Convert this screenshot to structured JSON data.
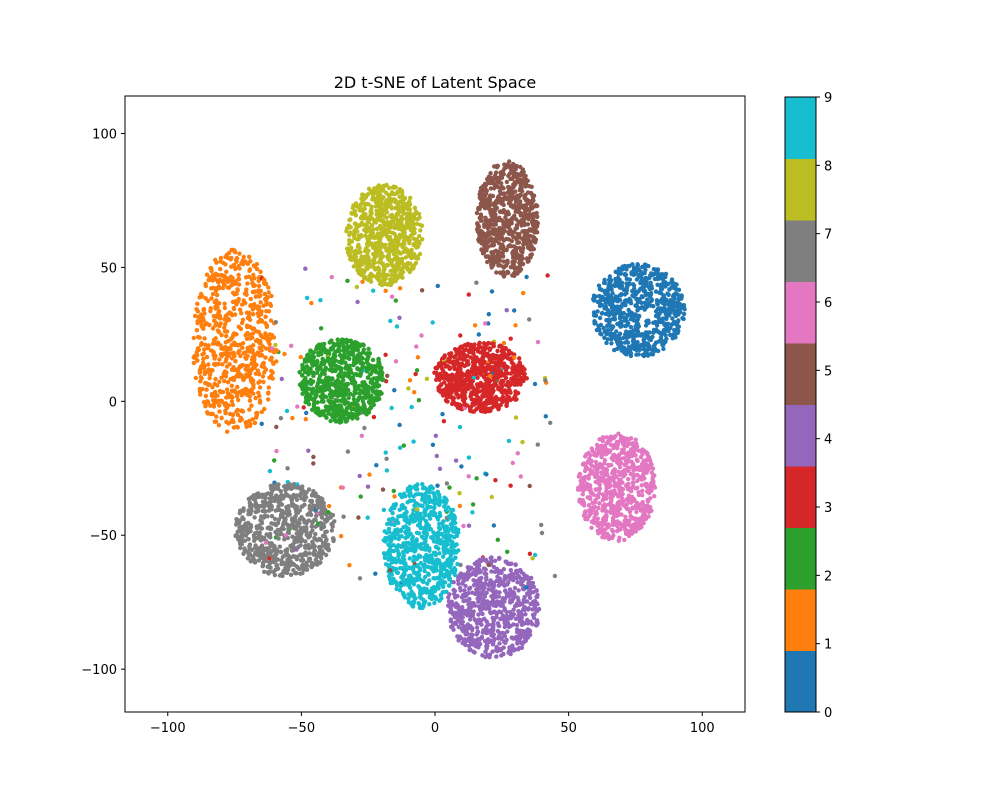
{
  "chart_data": {
    "type": "scatter",
    "title": "2D t-SNE of Latent Space",
    "xlabel": "",
    "ylabel": "",
    "xlim": [
      -116,
      116
    ],
    "ylim": [
      -116,
      114
    ],
    "xticks": [
      -100,
      -50,
      0,
      50,
      100
    ],
    "yticks": [
      -100,
      -50,
      0,
      50,
      100
    ],
    "grid": false,
    "colorbar": {
      "labels": [
        "0",
        "1",
        "2",
        "3",
        "4",
        "5",
        "6",
        "7",
        "8",
        "9"
      ],
      "colors": [
        "#1f77b4",
        "#ff7f0e",
        "#2ca02c",
        "#d62728",
        "#9467bd",
        "#8c564b",
        "#e377c2",
        "#7f7f7f",
        "#bcbd22",
        "#17becf"
      ]
    },
    "clusters": [
      {
        "label": "0",
        "color": "#1f77b4",
        "center": [
          76,
          34
        ],
        "spread": [
          12,
          12
        ]
      },
      {
        "label": "1",
        "color": "#ff7f0e",
        "center": [
          -75,
          22
        ],
        "spread": [
          11,
          24
        ]
      },
      {
        "label": "2",
        "color": "#2ca02c",
        "center": [
          -35,
          8
        ],
        "spread": [
          11,
          11
        ]
      },
      {
        "label": "3",
        "color": "#d62728",
        "center": [
          17,
          9
        ],
        "spread": [
          12,
          9
        ]
      },
      {
        "label": "4",
        "color": "#9467bd",
        "center": [
          22,
          -77
        ],
        "spread": [
          12,
          13
        ]
      },
      {
        "label": "5",
        "color": "#8c564b",
        "center": [
          27,
          68
        ],
        "spread": [
          8,
          15
        ]
      },
      {
        "label": "6",
        "color": "#e377c2",
        "center": [
          68,
          -32
        ],
        "spread": [
          10,
          14
        ]
      },
      {
        "label": "7",
        "color": "#7f7f7f",
        "center": [
          -56,
          -48
        ],
        "spread": [
          13,
          12
        ]
      },
      {
        "label": "8",
        "color": "#bcbd22",
        "center": [
          -19,
          62
        ],
        "spread": [
          10,
          13
        ]
      },
      {
        "label": "9",
        "color": "#17becf",
        "center": [
          -5,
          -54
        ],
        "spread": [
          10,
          16
        ]
      }
    ]
  }
}
